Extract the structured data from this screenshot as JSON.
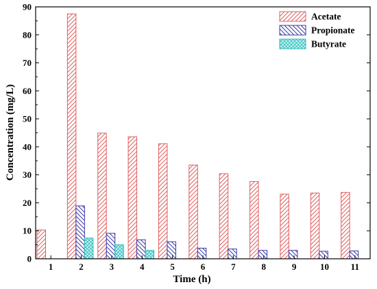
{
  "chart_data": {
    "type": "bar",
    "xlabel": "Time (h)",
    "ylabel": "Concentration (mg/L)",
    "ylim": [
      0,
      90
    ],
    "yticks": [
      0,
      10,
      20,
      30,
      40,
      50,
      60,
      70,
      80,
      90
    ],
    "categories": [
      "1",
      "2",
      "3",
      "4",
      "5",
      "6",
      "7",
      "8",
      "9",
      "10",
      "11"
    ],
    "legend_position": "top-right",
    "grid": false,
    "series": [
      {
        "name": "Acetate",
        "color": "#e06060",
        "pattern": "diagonal-hatch-left",
        "values": [
          10.3,
          87.5,
          44.9,
          43.6,
          41.1,
          33.5,
          30.4,
          27.6,
          23.1,
          23.5,
          23.7
        ]
      },
      {
        "name": "Propionate",
        "color": "#3a3aa8",
        "pattern": "diagonal-hatch-right",
        "values": [
          0,
          18.9,
          9.1,
          6.8,
          6.1,
          3.8,
          3.5,
          3.0,
          3.0,
          2.7,
          2.8
        ]
      },
      {
        "name": "Butyrate",
        "color": "#2ab8b8",
        "pattern": "crosshatch",
        "values": [
          0,
          7.4,
          5.0,
          3.0,
          0,
          0,
          0,
          0,
          0,
          0,
          0
        ]
      }
    ]
  }
}
